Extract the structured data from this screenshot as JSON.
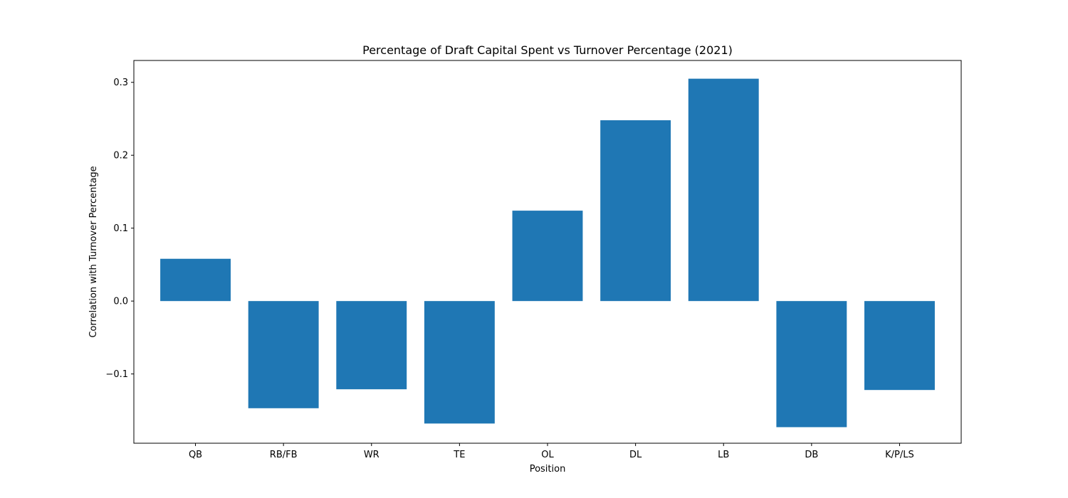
{
  "chart_data": {
    "type": "bar",
    "title": "Percentage of Draft Capital Spent vs Turnover Percentage (2021)",
    "xlabel": "Position",
    "ylabel": "Correlation with Turnover Percentage",
    "categories": [
      "QB",
      "RB/FB",
      "WR",
      "TE",
      "OL",
      "DL",
      "LB",
      "DB",
      "K/P/LS"
    ],
    "values": [
      0.058,
      -0.147,
      -0.121,
      -0.168,
      0.124,
      0.248,
      0.305,
      -0.173,
      -0.122
    ],
    "ylim": [
      -0.195,
      0.33
    ],
    "yticks": [
      -0.1,
      0.0,
      0.1,
      0.2,
      0.3
    ],
    "ytick_labels": [
      "−0.1",
      "0.0",
      "0.1",
      "0.2",
      "0.3"
    ],
    "grid": false,
    "legend": "none",
    "bar_color": "#1f77b4"
  }
}
